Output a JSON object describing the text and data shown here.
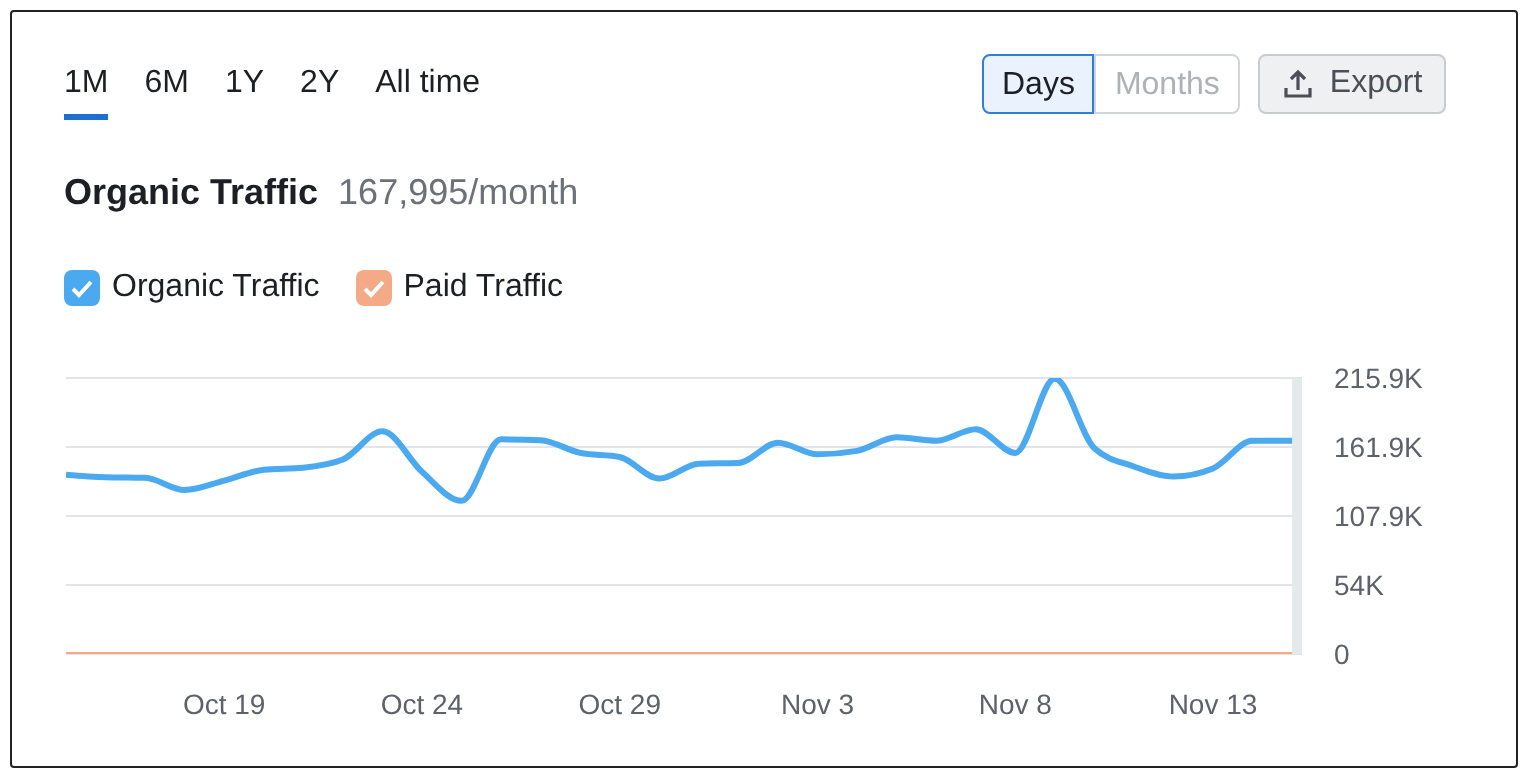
{
  "chart_data": {
    "type": "line",
    "title": "Organic Traffic",
    "subtitle": "167,995/month",
    "annotations": [
      "1M",
      "6M",
      "1Y",
      "2Y",
      "All time",
      "Days",
      "Months",
      "Export"
    ],
    "x": [
      "--10-15",
      "--10-16",
      "--10-17",
      "--10-18",
      "--10-19",
      "--10-20",
      "--10-21",
      "--10-22",
      "--10-23",
      "--10-24",
      "--10-25",
      "--10-26",
      "--10-27",
      "--10-28",
      "--10-29",
      "--10-30",
      "--10-31",
      "--11-01",
      "--11-02",
      "--11-03",
      "--11-04",
      "--11-05",
      "--11-06",
      "--11-07",
      "--11-08",
      "--11-09",
      "--11-10",
      "--11-11",
      "--11-12",
      "--11-13",
      "--11-14",
      "--11-15"
    ],
    "series": [
      {
        "name": "Organic Traffic",
        "color": "#4ba9ef",
        "values": [
          140300,
          138300,
          137800,
          128300,
          135600,
          144100,
          145700,
          152100,
          174200,
          142600,
          119800,
          167900,
          167300,
          157300,
          154100,
          137200,
          148900,
          149400,
          165200,
          156200,
          158900,
          169500,
          166800,
          175800,
          157300,
          215400,
          161000,
          146700,
          138800,
          145100,
          166800,
          166800
        ]
      },
      {
        "name": "Paid Traffic",
        "color": "#f4a987",
        "values": [
          0,
          0,
          0,
          0,
          0,
          0,
          0,
          0,
          0,
          0,
          0,
          0,
          0,
          0,
          0,
          0,
          0,
          0,
          0,
          0,
          0,
          0,
          0,
          0,
          0,
          0,
          0,
          0,
          0,
          0,
          0,
          0
        ]
      }
    ],
    "xlim": [
      "--10-15",
      "--11-15T06:00"
    ],
    "xticks": [
      {
        "value": "--10-19",
        "label": "Oct 19"
      },
      {
        "value": "--10-24",
        "label": "Oct 24"
      },
      {
        "value": "--10-29",
        "label": "Oct 29"
      },
      {
        "value": "--11-03",
        "label": "Nov 3"
      },
      {
        "value": "--11-08",
        "label": "Nov 8"
      },
      {
        "value": "--11-13",
        "label": "Nov 13"
      }
    ],
    "ylim": [
      0,
      215900
    ],
    "yticks": [
      0,
      {
        "value": 54000,
        "label": "54K"
      },
      {
        "value": 107900,
        "label": "107.9K"
      },
      {
        "value": 161900,
        "label": "161.9K"
      },
      {
        "value": 215900,
        "label": "215.9K"
      }
    ],
    "bands": [
      {
        "axis": "x",
        "from": "--11-15",
        "to": "--11-15T06:00",
        "color": "#e4e9e9"
      }
    ],
    "grid": "y",
    "legend": "top left",
    "marker": "none",
    "line_style": "solid"
  }
}
